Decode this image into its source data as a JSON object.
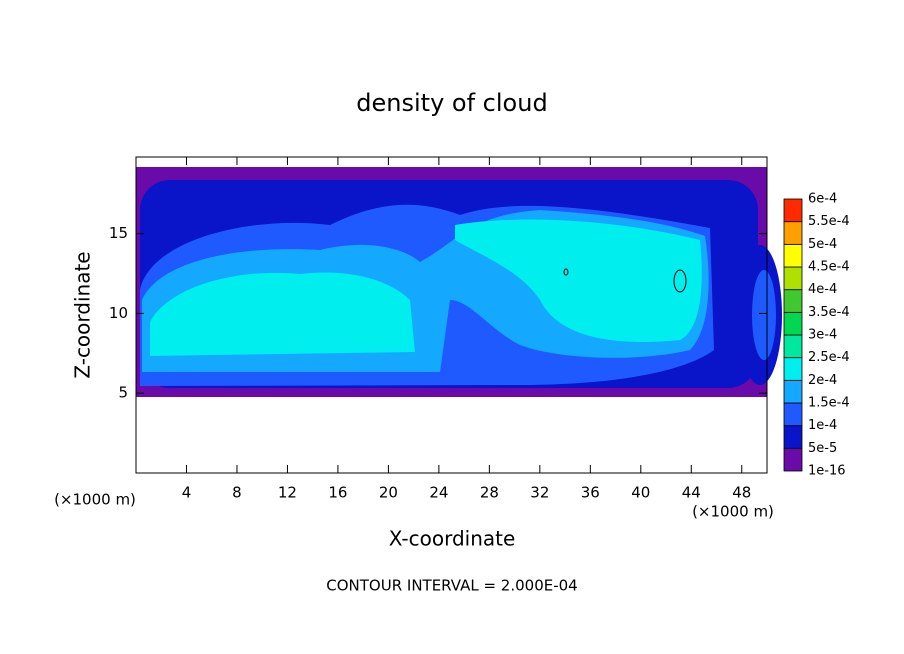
{
  "chart_data": {
    "type": "contour",
    "title": "density of cloud",
    "x_label": "X-coordinate",
    "y_label": "Z-coordinate",
    "x_unit": "(×1000 m)",
    "y_unit": "(×1000 m)",
    "annotation": "CONTOUR INTERVAL = 2.000E-04",
    "xlim": [
      0,
      50
    ],
    "xticks": [
      4,
      8,
      12,
      16,
      20,
      24,
      28,
      32,
      36,
      40,
      44,
      48
    ],
    "ylim": [
      0,
      19.8
    ],
    "yticks": [
      5,
      10,
      15
    ],
    "levels": [
      {
        "value": 1e-16,
        "label": "1e-16"
      },
      {
        "value": 5e-05,
        "label": "5e-5"
      },
      {
        "value": 0.0001,
        "label": "1e-4"
      },
      {
        "value": 0.00015,
        "label": "1.5e-4"
      },
      {
        "value": 0.0002,
        "label": "2e-4"
      },
      {
        "value": 0.00025,
        "label": "2.5e-4"
      },
      {
        "value": 0.0003,
        "label": "3e-4"
      },
      {
        "value": 0.00035,
        "label": "3.5e-4"
      },
      {
        "value": 0.0004,
        "label": "4e-4"
      },
      {
        "value": 0.00045,
        "label": "4.5e-4"
      },
      {
        "value": 0.0005,
        "label": "5e-4"
      },
      {
        "value": 0.00055,
        "label": "5.5e-4"
      },
      {
        "value": 0.0006,
        "label": "6e-4"
      }
    ],
    "colors": [
      "#6a0aa8",
      "#0a14c8",
      "#1e5aff",
      "#14a8ff",
      "#00eeee",
      "#00e8a0",
      "#00d850",
      "#40c830",
      "#b0e000",
      "#ffff00",
      "#ffa000",
      "#ff2a00",
      "#ff8c8c"
    ]
  }
}
